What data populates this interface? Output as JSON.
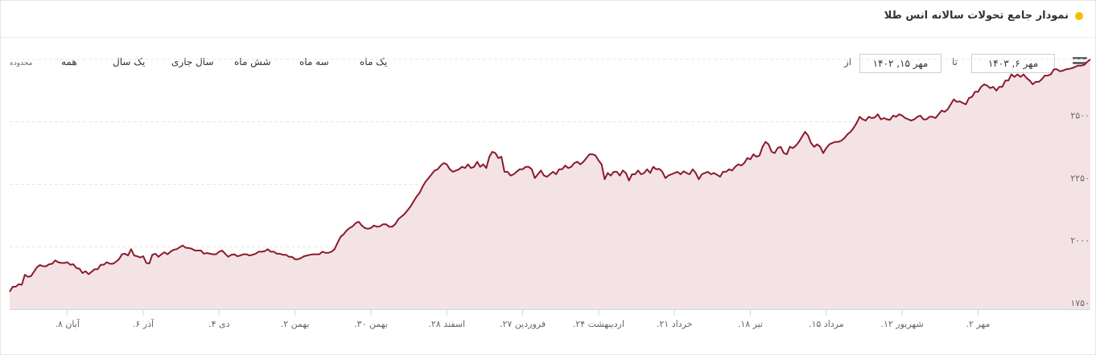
{
  "header": {
    "title": "نمودار جامع تحولات سالانه انس طلا"
  },
  "toolbar": {
    "range_label": "محدوده",
    "ranges": [
      "همه",
      "یک سال",
      "سال جاری",
      "شش ماه",
      "سه ماه",
      "یک ماه"
    ],
    "from_label": "از",
    "to_label": "تا",
    "from_date": "مهر ۱۵, ۱۴۰۲",
    "to_date": "مهر ۶, ۱۴۰۳",
    "menu_icon": "hamburger-menu-icon"
  },
  "chart_data": {
    "type": "area",
    "title": "",
    "xlabel": "",
    "ylabel": "",
    "ylim": [
      1750,
      2650
    ],
    "yticks": [
      1750,
      2000,
      2250,
      2500
    ],
    "ytick_labels": [
      "۱۷۵۰",
      "۲۰۰۰",
      "۲۲۵۰",
      "۲۵۰۰"
    ],
    "xtick_labels": [
      "آبان ۸.",
      "آذر ۶.",
      "دی ۴.",
      "بهمن ۲.",
      "بهمن ۳۰.",
      "اسفند ۲۸.",
      "فروردین ۲۷.",
      "اردیبهشت ۲۴.",
      "خرداد ۲۱.",
      "تیر ۱۸.",
      "مرداد ۱۵.",
      "شهریور ۱۲.",
      "مهر ۲."
    ],
    "xtick_index": [
      19,
      44,
      69,
      94,
      119,
      144,
      169,
      194,
      219,
      244,
      269,
      294,
      319
    ],
    "grid": true,
    "line_color": "#8b1a2b",
    "fill_color": "#f3e3e5",
    "series": [
      {
        "values": [
          1820,
          1840,
          1840,
          1850,
          1848,
          1888,
          1880,
          1882,
          1900,
          1918,
          1927,
          1922,
          1922,
          1930,
          1932,
          1945,
          1938,
          1935,
          1935,
          1938,
          1928,
          1930,
          1915,
          1912,
          1895,
          1902,
          1890,
          1900,
          1910,
          1910,
          1928,
          1928,
          1938,
          1932,
          1932,
          1940,
          1950,
          1970,
          1972,
          1965,
          1990,
          1965,
          1962,
          1957,
          1962,
          1935,
          1933,
          1968,
          1972,
          1960,
          1970,
          1978,
          1970,
          1980,
          1988,
          1990,
          1998,
          2005,
          1996,
          1995,
          1992,
          1985,
          1985,
          1985,
          1972,
          1975,
          1972,
          1970,
          1970,
          1980,
          1985,
          1972,
          1960,
          1968,
          1970,
          1962,
          1965,
          1970,
          1970,
          1965,
          1968,
          1972,
          1980,
          1980,
          1982,
          1990,
          1980,
          1980,
          1972,
          1972,
          1968,
          1968,
          1960,
          1960,
          1950,
          1950,
          1955,
          1962,
          1965,
          1968,
          1970,
          1970,
          1970,
          1980,
          1976,
          1976,
          1980,
          1990,
          2015,
          2040,
          2050,
          2065,
          2075,
          2082,
          2095,
          2100,
          2085,
          2075,
          2072,
          2075,
          2085,
          2080,
          2082,
          2090,
          2090,
          2080,
          2080,
          2090,
          2110,
          2120,
          2130,
          2145,
          2160,
          2180,
          2200,
          2215,
          2240,
          2260,
          2275,
          2290,
          2305,
          2310,
          2325,
          2335,
          2330,
          2310,
          2300,
          2305,
          2310,
          2320,
          2315,
          2330,
          2315,
          2320,
          2340,
          2320,
          2330,
          2315,
          2360,
          2380,
          2375,
          2355,
          2360,
          2300,
          2300,
          2285,
          2290,
          2300,
          2310,
          2310,
          2320,
          2320,
          2310,
          2275,
          2290,
          2305,
          2285,
          2280,
          2290,
          2300,
          2290,
          2310,
          2310,
          2325,
          2315,
          2320,
          2335,
          2340,
          2330,
          2340,
          2355,
          2370,
          2370,
          2365,
          2345,
          2330,
          2270,
          2295,
          2285,
          2300,
          2300,
          2285,
          2305,
          2295,
          2265,
          2290,
          2290,
          2305,
          2290,
          2295,
          2310,
          2295,
          2320,
          2310,
          2312,
          2300,
          2275,
          2285,
          2290,
          2295,
          2300,
          2290,
          2302,
          2295,
          2290,
          2310,
          2295,
          2270,
          2290,
          2295,
          2300,
          2290,
          2295,
          2288,
          2280,
          2300,
          2300,
          2310,
          2305,
          2320,
          2330,
          2325,
          2335,
          2355,
          2350,
          2370,
          2360,
          2365,
          2400,
          2420,
          2410,
          2380,
          2375,
          2395,
          2400,
          2375,
          2370,
          2400,
          2395,
          2405,
          2420,
          2440,
          2460,
          2445,
          2415,
          2400,
          2410,
          2400,
          2375,
          2395,
          2410,
          2415,
          2420,
          2420,
          2425,
          2435,
          2450,
          2460,
          2475,
          2495,
          2520,
          2510,
          2505,
          2520,
          2515,
          2518,
          2530,
          2510,
          2515,
          2510,
          2508,
          2525,
          2520,
          2530,
          2525,
          2515,
          2510,
          2505,
          2510,
          2520,
          2525,
          2510,
          2510,
          2520,
          2520,
          2515,
          2530,
          2545,
          2540,
          2550,
          2570,
          2590,
          2580,
          2582,
          2575,
          2570,
          2595,
          2600,
          2620,
          2620,
          2640,
          2650,
          2645,
          2635,
          2640,
          2625,
          2640,
          2640,
          2665,
          2665,
          2690,
          2680,
          2690,
          2680,
          2690,
          2675,
          2665,
          2650,
          2660,
          2660,
          2670,
          2685,
          2685,
          2690,
          2710,
          2710,
          2702,
          2705,
          2710,
          2712,
          2715,
          2720,
          2725,
          2725,
          2728,
          2740,
          2750
        ]
      }
    ]
  }
}
